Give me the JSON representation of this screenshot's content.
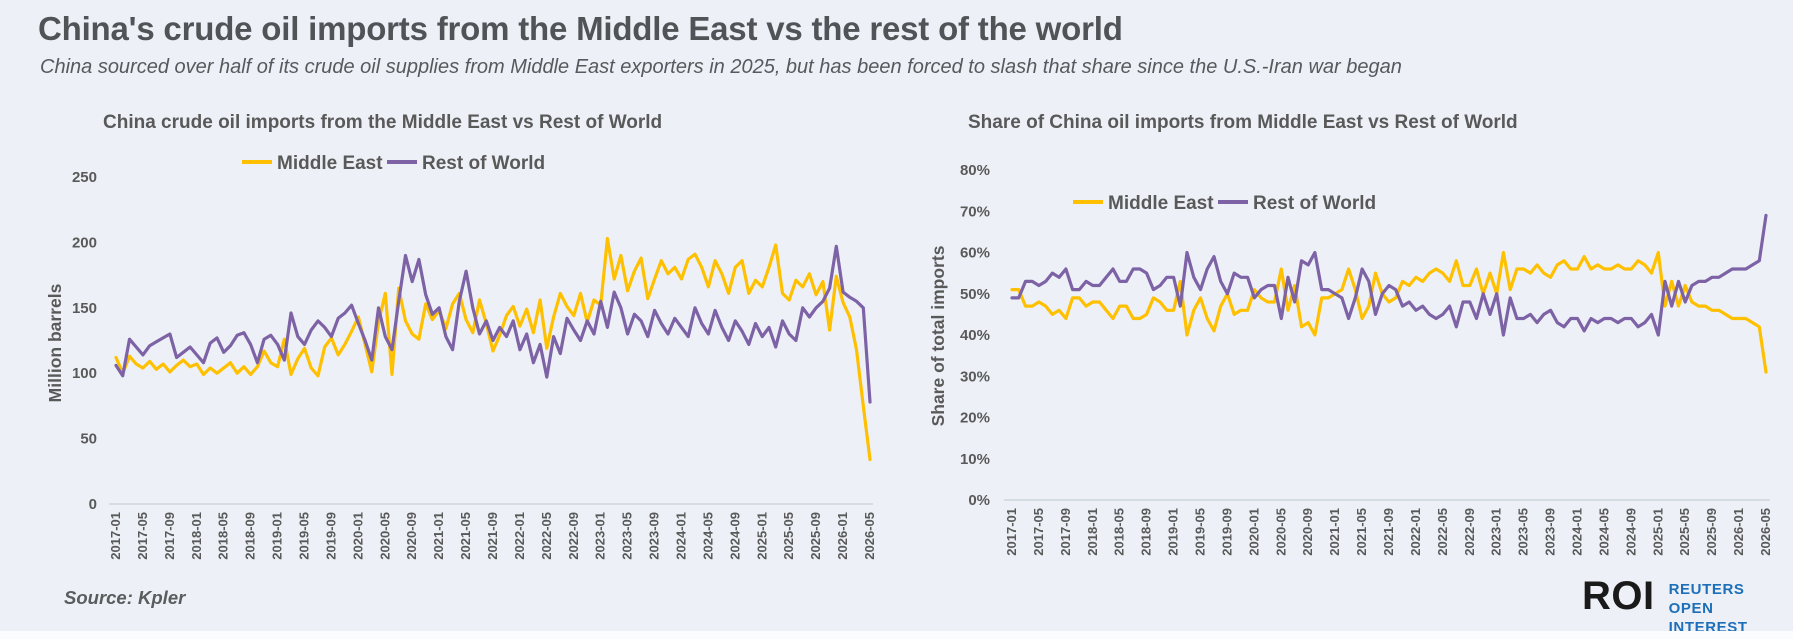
{
  "page": {
    "title": "China's crude oil imports from the Middle East vs the rest of the world",
    "subtitle": "China sourced over half of its crude oil supplies from Middle East exporters in 2025, but has been forced to slash that share since the U.S.-Iran war began",
    "source_label": "Source:  Kpler",
    "logo": {
      "roi": "ROI",
      "line1": "REUTERS OPEN",
      "line2": "INTEREST"
    }
  },
  "colors": {
    "middle_east": "#FFC000",
    "rest_of_world": "#7D63A6",
    "background": "#EDF1F7",
    "text": "#595959",
    "axis_line": "#C9CFD8",
    "logo_blue": "#1C6FB8",
    "logo_black": "#1A1A1A"
  },
  "chart_data": [
    {
      "type": "line",
      "title": "China crude oil imports from the Middle East vs Rest of World",
      "ylabel": "Million barrels",
      "ylim": [
        0,
        250
      ],
      "yticks": [
        0,
        50,
        100,
        150,
        200,
        250
      ],
      "ytick_suffix": "",
      "grid": false,
      "legend_position": "top",
      "x_frequency": "monthly",
      "x_tick_labels": [
        "2017-01",
        "2017-05",
        "2017-09",
        "2018-01",
        "2018-05",
        "2018-09",
        "2019-01",
        "2019-05",
        "2019-09",
        "2020-01",
        "2020-05",
        "2020-09",
        "2021-01",
        "2021-05",
        "2021-09",
        "2022-01",
        "2022-05",
        "2022-09",
        "2023-01",
        "2023-05",
        "2023-09",
        "2024-01",
        "2024-05",
        "2024-09",
        "2025-01",
        "2025-05",
        "2025-09",
        "2026-01",
        "2026-05"
      ],
      "series": [
        {
          "name": "Middle East",
          "color": "#FFC000",
          "values": [
            112,
            100,
            113,
            107,
            104,
            109,
            103,
            107,
            101,
            106,
            110,
            105,
            107,
            99,
            104,
            100,
            104,
            108,
            100,
            105,
            99,
            105,
            117,
            108,
            105,
            126,
            99,
            111,
            119,
            104,
            98,
            120,
            127,
            114,
            122,
            132,
            143,
            122,
            101,
            139,
            161,
            99,
            165,
            140,
            130,
            126,
            153,
            141,
            148,
            134,
            153,
            161,
            141,
            131,
            156,
            138,
            117,
            129,
            144,
            151,
            136,
            149,
            131,
            156,
            119,
            143,
            161,
            151,
            144,
            161,
            139,
            156,
            152,
            203,
            172,
            190,
            163,
            178,
            188,
            157,
            172,
            186,
            176,
            181,
            172,
            187,
            191,
            181,
            166,
            186,
            176,
            161,
            181,
            186,
            161,
            171,
            166,
            181,
            198,
            161,
            156,
            171,
            166,
            176,
            160,
            170,
            133,
            174,
            154,
            143,
            118,
            75,
            34
          ]
        },
        {
          "name": "Rest of World",
          "color": "#7D63A6",
          "values": [
            106,
            98,
            126,
            120,
            114,
            121,
            124,
            127,
            130,
            112,
            116,
            120,
            114,
            108,
            123,
            127,
            116,
            121,
            129,
            131,
            122,
            108,
            126,
            129,
            122,
            110,
            146,
            128,
            122,
            133,
            140,
            135,
            128,
            142,
            146,
            152,
            138,
            125,
            110,
            150,
            128,
            118,
            155,
            190,
            170,
            187,
            160,
            145,
            150,
            128,
            118,
            155,
            178,
            150,
            130,
            140,
            125,
            135,
            128,
            140,
            118,
            130,
            108,
            122,
            97,
            128,
            115,
            142,
            133,
            125,
            140,
            130,
            155,
            135,
            162,
            150,
            130,
            145,
            140,
            128,
            148,
            138,
            130,
            142,
            135,
            128,
            150,
            138,
            130,
            148,
            135,
            125,
            140,
            132,
            122,
            138,
            128,
            135,
            120,
            140,
            130,
            125,
            150,
            143,
            150,
            155,
            165,
            197,
            162,
            158,
            155,
            150,
            78
          ]
        }
      ]
    },
    {
      "type": "line",
      "title": "Share of China oil imports from Middle East vs  Rest of World",
      "ylabel": "Share of total imports",
      "ylim": [
        0,
        80
      ],
      "yticks": [
        0,
        10,
        20,
        30,
        40,
        50,
        60,
        70,
        80
      ],
      "ytick_suffix": "%",
      "grid": false,
      "legend_position": "top",
      "x_frequency": "monthly",
      "x_tick_labels": [
        "2017-01",
        "2017-05",
        "2017-09",
        "2018-01",
        "2018-05",
        "2018-09",
        "2019-01",
        "2019-05",
        "2019-09",
        "2020-01",
        "2020-05",
        "2020-09",
        "2021-01",
        "2021-05",
        "2021-09",
        "2022-01",
        "2022-05",
        "2022-09",
        "2023-01",
        "2023-05",
        "2023-09",
        "2024-01",
        "2024-05",
        "2024-09",
        "2025-01",
        "2025-05",
        "2025-09",
        "2026-01",
        "2026-05"
      ],
      "series": [
        {
          "name": "Middle East",
          "color": "#FFC000",
          "values": [
            51,
            51,
            47,
            47,
            48,
            47,
            45,
            46,
            44,
            49,
            49,
            47,
            48,
            48,
            46,
            44,
            47,
            47,
            44,
            44,
            45,
            49,
            48,
            46,
            46,
            53,
            40,
            46,
            49,
            44,
            41,
            47,
            50,
            45,
            46,
            46,
            51,
            49,
            48,
            48,
            56,
            46,
            52,
            42,
            43,
            40,
            49,
            49,
            50,
            51,
            56,
            51,
            44,
            47,
            55,
            50,
            48,
            49,
            53,
            52,
            54,
            53,
            55,
            56,
            55,
            53,
            58,
            52,
            52,
            56,
            50,
            55,
            50,
            60,
            51,
            56,
            56,
            55,
            57,
            55,
            54,
            57,
            58,
            56,
            56,
            59,
            56,
            57,
            56,
            56,
            57,
            56,
            56,
            58,
            57,
            55,
            60,
            47,
            53,
            47,
            52,
            48,
            47,
            47,
            46,
            46,
            45,
            44,
            44,
            44,
            43,
            42,
            31
          ]
        },
        {
          "name": "Rest of World",
          "color": "#7D63A6",
          "values": [
            49,
            49,
            53,
            53,
            52,
            53,
            55,
            54,
            56,
            51,
            51,
            53,
            52,
            52,
            54,
            56,
            53,
            53,
            56,
            56,
            55,
            51,
            52,
            54,
            54,
            47,
            60,
            54,
            51,
            56,
            59,
            53,
            50,
            55,
            54,
            54,
            49,
            51,
            52,
            52,
            44,
            54,
            48,
            58,
            57,
            60,
            51,
            51,
            50,
            49,
            44,
            49,
            56,
            53,
            45,
            50,
            52,
            51,
            47,
            48,
            46,
            47,
            45,
            44,
            45,
            47,
            42,
            48,
            48,
            44,
            50,
            45,
            50,
            40,
            49,
            44,
            44,
            45,
            43,
            45,
            46,
            43,
            42,
            44,
            44,
            41,
            44,
            43,
            44,
            44,
            43,
            44,
            44,
            42,
            43,
            45,
            40,
            53,
            47,
            53,
            48,
            52,
            53,
            53,
            54,
            54,
            55,
            56,
            56,
            56,
            57,
            58,
            69
          ]
        }
      ]
    }
  ]
}
